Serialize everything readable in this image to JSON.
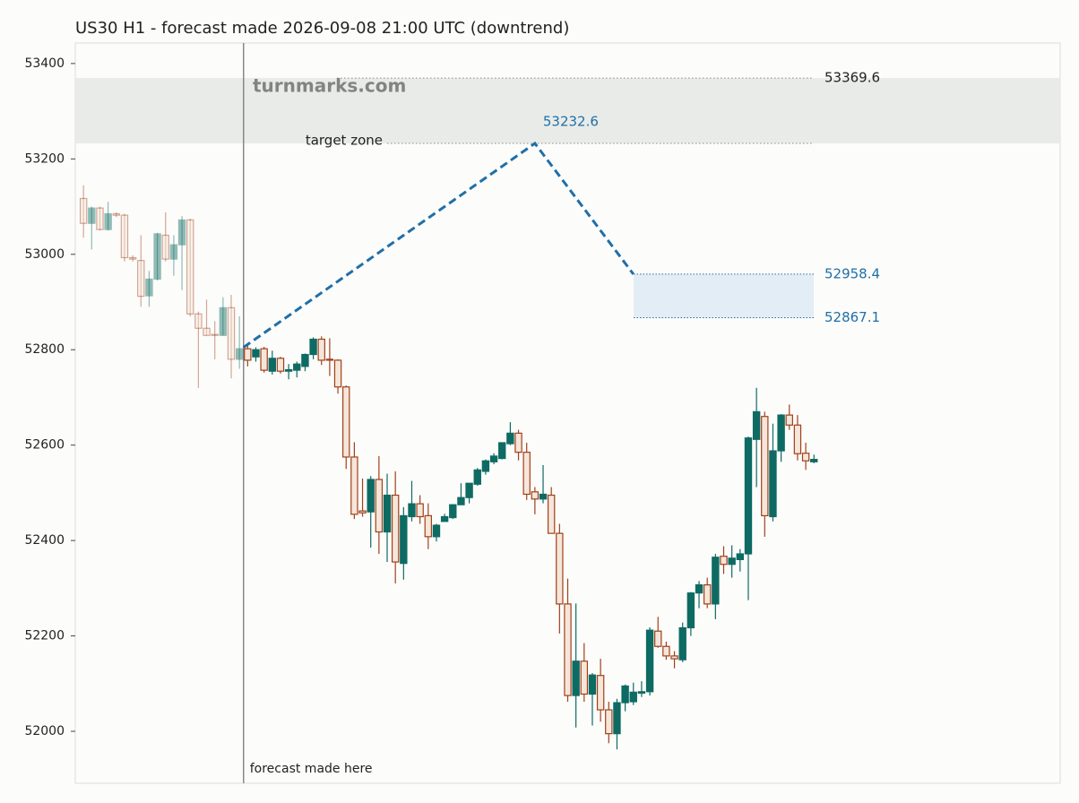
{
  "chart_data": {
    "type": "candlestick",
    "title": "US30 H1 - forecast made 2026-09-08 21:00 UTC (downtrend)",
    "watermark": "turnmarks.com",
    "categories": [
      null,
      null,
      null,
      null,
      null,
      null,
      null,
      null,
      null,
      null,
      null,
      null,
      null,
      null,
      null,
      null,
      null,
      null,
      null,
      null,
      null,
      null,
      null,
      null,
      null,
      null,
      null,
      null,
      null,
      null,
      null,
      null,
      null,
      null,
      null,
      null,
      null,
      null,
      null,
      null,
      null,
      null,
      null,
      null,
      null,
      null,
      null,
      null,
      null,
      null,
      null,
      null,
      null,
      null,
      null,
      null,
      null,
      null,
      null,
      null,
      null,
      null,
      null,
      null,
      null,
      null,
      null,
      null,
      null,
      null,
      null,
      null,
      null,
      null,
      null,
      null,
      null,
      null,
      null,
      null,
      null,
      null,
      null,
      null,
      null,
      null,
      null,
      null,
      null,
      null
    ],
    "open": [
      53117,
      53065,
      53097,
      53052,
      53085,
      53082,
      52993,
      52987,
      52913,
      52948,
      53040,
      52990,
      53020,
      53072,
      52875,
      52845,
      52832,
      52830,
      52888,
      52780,
      52802,
      52785,
      52802,
      52755,
      52782,
      52755,
      52757,
      52765,
      52790,
      52822,
      52780,
      52778,
      52722,
      52575,
      52462,
      52460,
      52528,
      52418,
      52495,
      52352,
      52450,
      52477,
      52452,
      52408,
      52440,
      52448,
      52475,
      52490,
      52518,
      52545,
      52565,
      52572,
      52603,
      52625,
      52585,
      52502,
      52487,
      52495,
      52415,
      52267,
      52075,
      52147,
      52078,
      52117,
      52045,
      51995,
      52060,
      52062,
      52080,
      52083,
      52210,
      52178,
      52158,
      52150,
      52217,
      52290,
      52307,
      52267,
      52367,
      52350,
      52360,
      52372,
      52612,
      52660,
      52450,
      52588,
      52663,
      52642,
      52583,
      52565
    ],
    "high": [
      53145,
      53100,
      53100,
      53110,
      53088,
      53085,
      52998,
      53040,
      52965,
      53045,
      53088,
      53040,
      53080,
      53075,
      52880,
      52905,
      52860,
      52910,
      52915,
      52870,
      52810,
      52805,
      52806,
      52798,
      52785,
      52770,
      52775,
      52792,
      52826,
      52828,
      52824,
      52780,
      52725,
      52606,
      52530,
      52535,
      52577,
      52540,
      52545,
      52470,
      52525,
      52495,
      52478,
      52435,
      52456,
      52476,
      52520,
      52520,
      52552,
      52570,
      52583,
      52605,
      52648,
      52632,
      52605,
      52512,
      52558,
      52512,
      52435,
      52320,
      52268,
      52185,
      52122,
      52152,
      52062,
      52068,
      52098,
      52102,
      52105,
      52218,
      52240,
      52188,
      52168,
      52228,
      52292,
      52315,
      52322,
      52372,
      52388,
      52390,
      52382,
      52618,
      52720,
      52670,
      52645,
      52665,
      52685,
      52663,
      52605,
      52580
    ],
    "low": [
      53035,
      53010,
      53050,
      53050,
      53078,
      52985,
      52985,
      52890,
      52890,
      52945,
      52985,
      52955,
      52925,
      52870,
      52720,
      52830,
      52780,
      52830,
      52740,
      52760,
      52765,
      52775,
      52752,
      52748,
      52750,
      52738,
      52742,
      52755,
      52780,
      52768,
      52745,
      52708,
      52550,
      52445,
      52450,
      52385,
      52372,
      52355,
      52310,
      52318,
      52440,
      52435,
      52382,
      52398,
      52440,
      52445,
      52475,
      52478,
      52515,
      52538,
      52560,
      52570,
      52600,
      52568,
      52485,
      52455,
      52478,
      52415,
      52205,
      52062,
      52008,
      52062,
      52012,
      52020,
      51975,
      51962,
      52042,
      52055,
      52072,
      52075,
      52175,
      52150,
      52132,
      52145,
      52200,
      52258,
      52258,
      52235,
      52330,
      52322,
      52335,
      52275,
      52512,
      52408,
      52440,
      52565,
      52632,
      52568,
      52548,
      52562
    ],
    "close": [
      53065,
      53097,
      53052,
      53085,
      53082,
      52993,
      52990,
      52912,
      52948,
      53043,
      52990,
      53020,
      53072,
      52875,
      52845,
      52830,
      52830,
      52888,
      52780,
      52802,
      52778,
      52800,
      52757,
      52782,
      52755,
      52758,
      52770,
      52790,
      52822,
      52778,
      52778,
      52722,
      52575,
      52455,
      52458,
      52528,
      52418,
      52495,
      52355,
      52452,
      52477,
      52450,
      52408,
      52432,
      52450,
      52475,
      52490,
      52520,
      52548,
      52567,
      52577,
      52605,
      52625,
      52585,
      52497,
      52487,
      52497,
      52415,
      52267,
      52075,
      52147,
      52078,
      52118,
      52045,
      51995,
      52060,
      52095,
      52082,
      52083,
      52212,
      52178,
      52158,
      52152,
      52217,
      52290,
      52307,
      52267,
      52365,
      52350,
      52363,
      52372,
      52615,
      52670,
      52452,
      52588,
      52663,
      52642,
      52582,
      52567,
      52570
    ],
    "up_color": "#0e6b63",
    "down_color": "#a0401a",
    "forecast_x": 19.5,
    "forecast_label": "forecast made here",
    "forecast": {
      "x": [
        19.5,
        55,
        67
      ],
      "values": [
        52805,
        53232.6,
        52958.4
      ],
      "color": "#1f6fa8"
    },
    "target_zone": [
      53232.6,
      53369.6
    ],
    "target_label": "target zone",
    "forecast_zone": [
      52867.1,
      52958.4
    ],
    "xlim": [
      -1,
      119
    ],
    "ylim": [
      51891,
      53443
    ],
    "yticks": [
      52000,
      52200,
      52400,
      52600,
      52800,
      53000,
      53200,
      53400
    ]
  }
}
